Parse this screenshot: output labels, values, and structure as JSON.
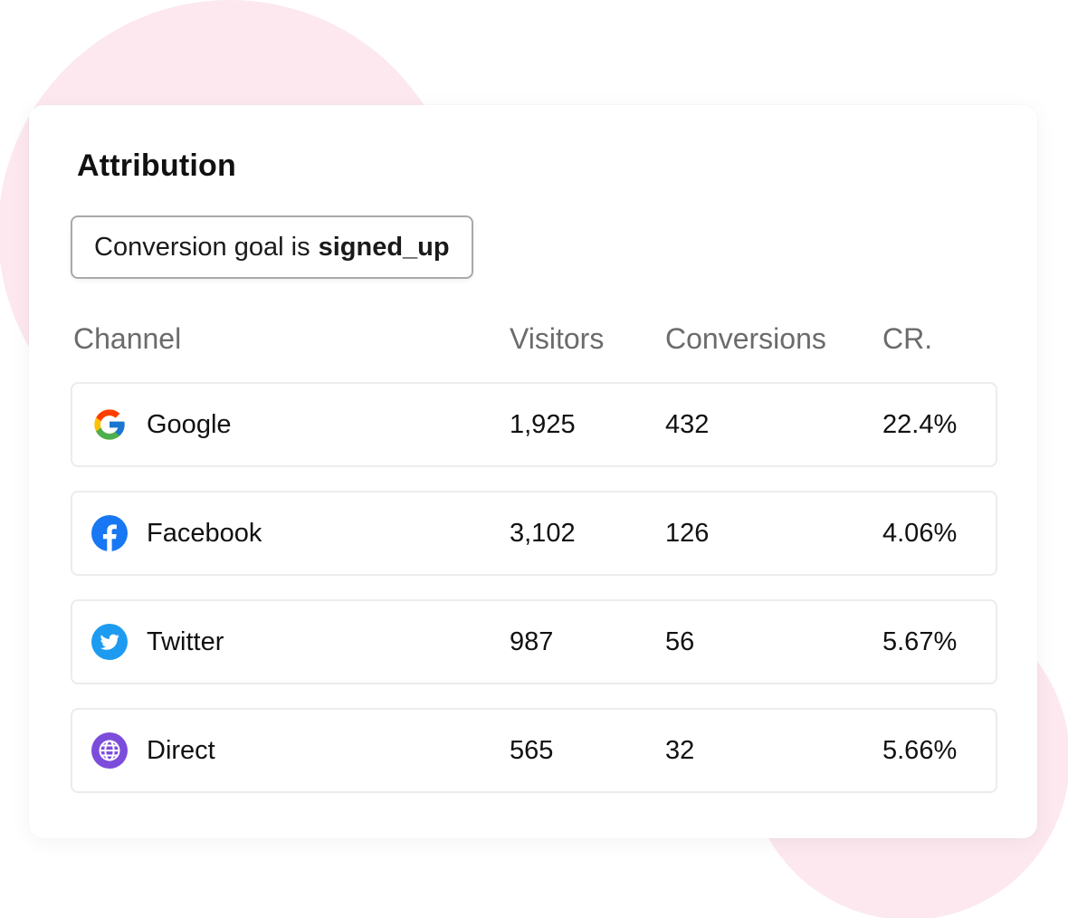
{
  "card": {
    "title": "Attribution",
    "goal": {
      "prefix": "Conversion goal is",
      "value": "signed_up"
    }
  },
  "table": {
    "headers": {
      "channel": "Channel",
      "visitors": "Visitors",
      "conversions": "Conversions",
      "cr": "CR."
    },
    "rows": [
      {
        "channel": "Google",
        "icon": "google-icon",
        "visitors": "1,925",
        "conversions": "432",
        "cr": "22.4%"
      },
      {
        "channel": "Facebook",
        "icon": "facebook-icon",
        "visitors": "3,102",
        "conversions": "126",
        "cr": "4.06%"
      },
      {
        "channel": "Twitter",
        "icon": "twitter-icon",
        "visitors": "987",
        "conversions": "56",
        "cr": "5.67%"
      },
      {
        "channel": "Direct",
        "icon": "globe-icon",
        "visitors": "565",
        "conversions": "32",
        "cr": "5.66%"
      }
    ]
  },
  "colors": {
    "background_blob": "#fde8ef",
    "facebook": "#1877f2",
    "twitter": "#1d9bf0",
    "direct": "#7c4ddb"
  }
}
